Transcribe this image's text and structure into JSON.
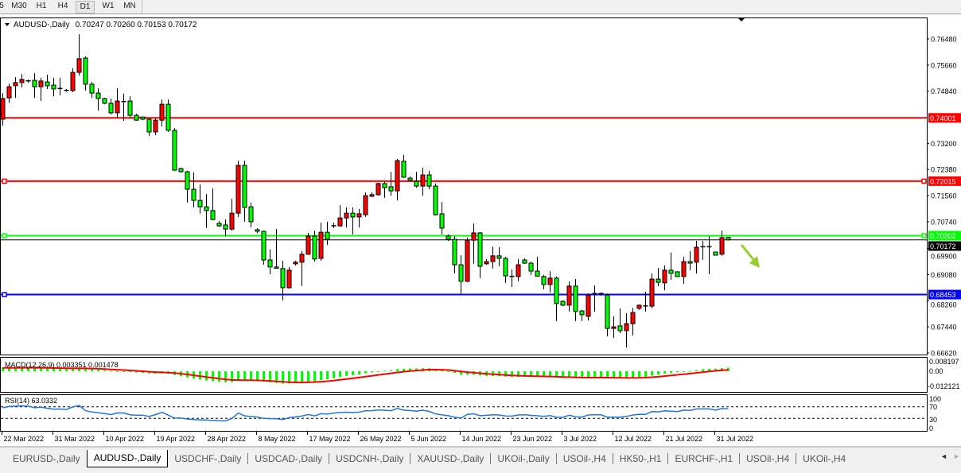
{
  "toolbar": {
    "timeframes": [
      {
        "label": "5",
        "active": false
      },
      {
        "label": "M30",
        "active": false
      },
      {
        "label": "H1",
        "active": false
      },
      {
        "label": "H4",
        "active": false
      },
      {
        "label": "D1",
        "active": true
      },
      {
        "label": "W1",
        "active": false
      },
      {
        "label": "MN",
        "active": false
      }
    ]
  },
  "chart_header": {
    "symbol": "AUDUSD-,Daily",
    "ohlc_text": "0.70247 0.70260 0.70153 0.70172"
  },
  "macd": {
    "label": "MACD(12,26,9) 0.003351 0.001478",
    "axis": [
      "0.008197",
      "0.00",
      "-0.012121"
    ],
    "histogram_color": "#00ff00",
    "signal_color": "#ff0000"
  },
  "rsi": {
    "label": "RSI(14) 63.0332",
    "axis": [
      "100",
      "70",
      "30",
      "0"
    ],
    "levels": [
      70,
      30
    ],
    "line_color": "#1e78d8"
  },
  "chart_data": {
    "type": "candlestick",
    "title": "AUDUSD-,Daily",
    "up_color": "#ff0000",
    "down_color": "#00ff00",
    "ylim": [
      0.6662,
      0.7672
    ],
    "y_ticks": [
      "0.76480",
      "0.75660",
      "0.74840",
      "0.73200",
      "0.72380",
      "0.71560",
      "0.70740",
      "0.69900",
      "0.69080",
      "0.68260",
      "0.67440",
      "0.66620"
    ],
    "x_labels": [
      {
        "label": "22 Mar 2022",
        "bar": 0
      },
      {
        "label": "31 Mar 2022",
        "bar": 8
      },
      {
        "label": "10 Apr 2022",
        "bar": 16
      },
      {
        "label": "19 Apr 2022",
        "bar": 24
      },
      {
        "label": "28 Apr 2022",
        "bar": 32
      },
      {
        "label": "8 May 2022",
        "bar": 40
      },
      {
        "label": "17 May 2022",
        "bar": 48
      },
      {
        "label": "26 May 2022",
        "bar": 56
      },
      {
        "label": "5 Jun 2022",
        "bar": 64
      },
      {
        "label": "14 Jun 2022",
        "bar": 72
      },
      {
        "label": "23 Jun 2022",
        "bar": 80
      },
      {
        "label": "3 Jul 2022",
        "bar": 88
      },
      {
        "label": "12 Jul 2022",
        "bar": 96
      },
      {
        "label": "21 Jul 2022",
        "bar": 104
      },
      {
        "label": "31 Jul 2022",
        "bar": 112
      }
    ],
    "levels": [
      {
        "price": "0.74001",
        "color": "#ff0000"
      },
      {
        "price": "0.72015",
        "color": "#ff0000"
      },
      {
        "price": "0.70302",
        "color": "#00ff00"
      },
      {
        "price": "0.68453",
        "color": "#0000ff"
      }
    ],
    "current_price": "0.70172",
    "annotation_arrow_color": "#9acd32",
    "ohlc": [
      [
        0.7396,
        0.7478,
        0.7376,
        0.7461
      ],
      [
        0.7463,
        0.7508,
        0.7448,
        0.7498
      ],
      [
        0.7501,
        0.7528,
        0.7463,
        0.7511
      ],
      [
        0.7511,
        0.7538,
        0.7496,
        0.7521
      ],
      [
        0.7516,
        0.7521,
        0.7511,
        0.7517
      ],
      [
        0.7518,
        0.7541,
        0.7463,
        0.7498
      ],
      [
        0.7498,
        0.7526,
        0.7453,
        0.7516
      ],
      [
        0.7513,
        0.7536,
        0.7491,
        0.7501
      ],
      [
        0.7503,
        0.7526,
        0.7468,
        0.7491
      ],
      [
        0.7493,
        0.7526,
        0.7471,
        0.7492
      ],
      [
        0.7486,
        0.7491,
        0.7483,
        0.7487
      ],
      [
        0.7486,
        0.7556,
        0.7481,
        0.7543
      ],
      [
        0.7543,
        0.7663,
        0.7533,
        0.7586
      ],
      [
        0.7588,
        0.7593,
        0.7486,
        0.7506
      ],
      [
        0.7506,
        0.7513,
        0.7463,
        0.7478
      ],
      [
        0.7478,
        0.7493,
        0.7423,
        0.7461
      ],
      [
        0.7461,
        0.7463,
        0.7443,
        0.7446
      ],
      [
        0.7446,
        0.7461,
        0.7411,
        0.7416
      ],
      [
        0.7416,
        0.7493,
        0.7401,
        0.7453
      ],
      [
        0.7451,
        0.7476,
        0.7391,
        0.7452
      ],
      [
        0.7453,
        0.7468,
        0.7398,
        0.7408
      ],
      [
        0.7408,
        0.7413,
        0.7391,
        0.7393
      ],
      [
        0.7403,
        0.7403,
        0.7393,
        0.7396
      ],
      [
        0.7396,
        0.7401,
        0.7343,
        0.7356
      ],
      [
        0.7356,
        0.7401,
        0.7346,
        0.7393
      ],
      [
        0.7393,
        0.7458,
        0.7373,
        0.7443
      ],
      [
        0.7443,
        0.7458,
        0.7356,
        0.7361
      ],
      [
        0.7361,
        0.7368,
        0.7234,
        0.7236
      ],
      [
        0.7241,
        0.7244,
        0.7229,
        0.7231
      ],
      [
        0.7231,
        0.7234,
        0.7134,
        0.7176
      ],
      [
        0.7176,
        0.7229,
        0.7119,
        0.7141
      ],
      [
        0.7141,
        0.7191,
        0.7099,
        0.7121
      ],
      [
        0.7121,
        0.7161,
        0.7054,
        0.7109
      ],
      [
        0.7109,
        0.7179,
        0.7079,
        0.7081
      ],
      [
        0.7069,
        0.7076,
        0.7059,
        0.7061
      ],
      [
        0.7064,
        0.7081,
        0.7029,
        0.7051
      ],
      [
        0.7051,
        0.7146,
        0.7046,
        0.7101
      ],
      [
        0.7101,
        0.7266,
        0.7089,
        0.7251
      ],
      [
        0.7251,
        0.7266,
        0.7074,
        0.7119
      ],
      [
        0.7121,
        0.7134,
        0.7056,
        0.7074
      ],
      [
        0.7049,
        0.7054,
        0.7039,
        0.7044
      ],
      [
        0.7044,
        0.7046,
        0.6939,
        0.6954
      ],
      [
        0.6954,
        0.6987,
        0.6909,
        0.6932
      ],
      [
        0.6932,
        0.7051,
        0.6927,
        0.6928
      ],
      [
        0.6927,
        0.6952,
        0.6827,
        0.6867
      ],
      [
        0.6867,
        0.6932,
        0.6864,
        0.6922
      ],
      [
        0.6942,
        0.6952,
        0.6937,
        0.6947
      ],
      [
        0.6947,
        0.6982,
        0.6872,
        0.6972
      ],
      [
        0.6972,
        0.7039,
        0.697,
        0.7029
      ],
      [
        0.7029,
        0.7046,
        0.6949,
        0.6957
      ],
      [
        0.6959,
        0.7071,
        0.6952,
        0.7041
      ],
      [
        0.7041,
        0.7074,
        0.7001,
        0.7019
      ],
      [
        0.7061,
        0.7071,
        0.7054,
        0.7062
      ],
      [
        0.7061,
        0.7126,
        0.7059,
        0.7086
      ],
      [
        0.7086,
        0.7119,
        0.7056,
        0.7101
      ],
      [
        0.7101,
        0.7119,
        0.7034,
        0.7089
      ],
      [
        0.7089,
        0.7114,
        0.7056,
        0.7099
      ],
      [
        0.7096,
        0.7166,
        0.7089,
        0.7156
      ],
      [
        0.7154,
        0.7166,
        0.7151,
        0.7159
      ],
      [
        0.7159,
        0.7196,
        0.7156,
        0.7194
      ],
      [
        0.7194,
        0.7199,
        0.7149,
        0.7181
      ],
      [
        0.7184,
        0.7231,
        0.7156,
        0.7171
      ],
      [
        0.7171,
        0.7271,
        0.7141,
        0.7266
      ],
      [
        0.7264,
        0.7284,
        0.7211,
        0.7214
      ],
      [
        0.7211,
        0.7216,
        0.7201,
        0.7204
      ],
      [
        0.7201,
        0.7231,
        0.7181,
        0.7186
      ],
      [
        0.7186,
        0.7244,
        0.7156,
        0.7221
      ],
      [
        0.7221,
        0.7234,
        0.7176,
        0.7186
      ],
      [
        0.7186,
        0.7194,
        0.7094,
        0.7096
      ],
      [
        0.7099,
        0.7136,
        0.7034,
        0.7054
      ],
      [
        0.7029,
        0.7034,
        0.7014,
        0.7019
      ],
      [
        0.7019,
        0.7029,
        0.6912,
        0.6939
      ],
      [
        0.6939,
        0.6969,
        0.6847,
        0.6887
      ],
      [
        0.6887,
        0.7024,
        0.6884,
        0.7016
      ],
      [
        0.7016,
        0.7069,
        0.6942,
        0.7039
      ],
      [
        0.7039,
        0.7041,
        0.6897,
        0.6934
      ],
      [
        0.6942,
        0.6957,
        0.6939,
        0.6949
      ],
      [
        0.6949,
        0.6996,
        0.6927,
        0.6967
      ],
      [
        0.6967,
        0.6994,
        0.6934,
        0.6959
      ],
      [
        0.6959,
        0.6964,
        0.6882,
        0.6904
      ],
      [
        0.6902,
        0.6924,
        0.6869,
        0.6903
      ],
      [
        0.6902,
        0.6957,
        0.6887,
        0.6939
      ],
      [
        0.6954,
        0.6959,
        0.6942,
        0.6944
      ],
      [
        0.6944,
        0.6949,
        0.6907,
        0.6919
      ],
      [
        0.6919,
        0.6964,
        0.6902,
        0.6903
      ],
      [
        0.6902,
        0.6907,
        0.6862,
        0.6877
      ],
      [
        0.6877,
        0.6919,
        0.6852,
        0.6897
      ],
      [
        0.6897,
        0.6902,
        0.6762,
        0.6817
      ],
      [
        0.6824,
        0.6827,
        0.6809,
        0.6812
      ],
      [
        0.6812,
        0.6887,
        0.6792,
        0.6872
      ],
      [
        0.6872,
        0.6894,
        0.6762,
        0.6792
      ],
      [
        0.6794,
        0.6797,
        0.6762,
        0.6782
      ],
      [
        0.6777,
        0.6849,
        0.6764,
        0.6844
      ],
      [
        0.6849,
        0.6874,
        0.6792,
        0.6848
      ],
      [
        0.6849,
        0.6852,
        0.6842,
        0.6848
      ],
      [
        0.6844,
        0.6849,
        0.6714,
        0.6739
      ],
      [
        0.6739,
        0.6777,
        0.6709,
        0.6744
      ],
      [
        0.6747,
        0.6802,
        0.6724,
        0.6732
      ],
      [
        0.6732,
        0.6787,
        0.6679,
        0.6754
      ],
      [
        0.6754,
        0.6804,
        0.6717,
        0.6789
      ],
      [
        0.6802,
        0.6814,
        0.6797,
        0.6812
      ],
      [
        0.6809,
        0.6854,
        0.6792,
        0.681
      ],
      [
        0.6809,
        0.6912,
        0.6802,
        0.6894
      ],
      [
        0.6894,
        0.6929,
        0.6872,
        0.6884
      ],
      [
        0.6882,
        0.6937,
        0.6859,
        0.6922
      ],
      [
        0.6922,
        0.6977,
        0.6892,
        0.6912
      ],
      [
        0.6917,
        0.6917,
        0.6902,
        0.6902
      ],
      [
        0.6902,
        0.6964,
        0.6879,
        0.6949
      ],
      [
        0.6949,
        0.6982,
        0.6922,
        0.6944
      ],
      [
        0.6947,
        0.7014,
        0.6912,
        0.6994
      ],
      [
        0.6996,
        0.7014,
        0.6954,
        0.6995
      ],
      [
        0.6996,
        0.7029,
        0.6909,
        0.6995
      ],
      [
        0.6979,
        0.6979,
        0.6969,
        0.6969
      ],
      [
        0.6972,
        0.7046,
        0.6967,
        0.7024
      ],
      [
        0.70247,
        0.7026,
        0.70153,
        0.70172
      ]
    ]
  },
  "tabs": [
    {
      "label": "EURUSD-,Daily",
      "active": false
    },
    {
      "label": "AUDUSD-,Daily",
      "active": true
    },
    {
      "label": "USDCHF-,Daily",
      "active": false
    },
    {
      "label": "USDCAD-,Daily",
      "active": false
    },
    {
      "label": "USDCNH-,Daily",
      "active": false
    },
    {
      "label": "XAUUSD-,Daily",
      "active": false
    },
    {
      "label": "UKOil-,Daily",
      "active": false
    },
    {
      "label": "USOil-,H4",
      "active": false
    },
    {
      "label": "HK50-,H1",
      "active": false
    },
    {
      "label": "EURCHF-,H1",
      "active": false
    },
    {
      "label": "USOil-,H4",
      "active": false
    },
    {
      "label": "UKOil-,H4",
      "active": false
    }
  ],
  "tab_scroll": {
    "left": "◄",
    "right": "►"
  }
}
